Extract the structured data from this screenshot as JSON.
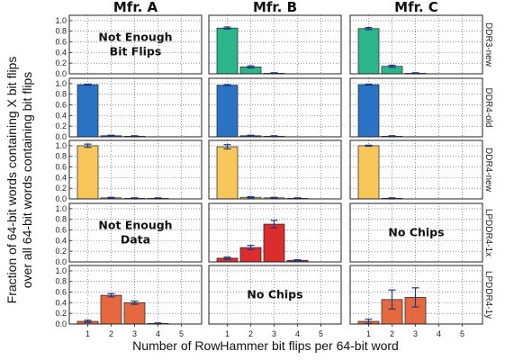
{
  "chart_data": {
    "type": "bar",
    "layout": "faceted grid",
    "columns": [
      "Mfr. A",
      "Mfr. B",
      "Mfr. C"
    ],
    "rows": [
      "DDR3-new",
      "DDR4-old",
      "DDR4-new",
      "LPDDR4-1x",
      "LPDDR4-1y"
    ],
    "row_colors": [
      "#2bb58a",
      "#2a72c4",
      "#f7c75a",
      "#dc2d2d",
      "#e5683f"
    ],
    "xlabel": "Number of RowHammer bit flips per 64-bit word",
    "ylabel_line1": "Fraction of 64-bit words containing X bit flips",
    "ylabel_line2": "over all 64-bit words containing bit flips",
    "categories": [
      "1",
      "2",
      "3",
      "4",
      "5"
    ],
    "yticks": [
      "0.0",
      "0.2",
      "0.4",
      "0.6",
      "0.8",
      "1.0"
    ],
    "ylim": [
      0,
      1.1
    ],
    "grid": true,
    "panels": [
      {
        "row": 0,
        "col": 0,
        "note": "Not Enough\nBit Flips",
        "values": null
      },
      {
        "row": 0,
        "col": 1,
        "values": [
          0.86,
          0.13,
          0.01,
          0,
          0
        ],
        "errors": [
          0.02,
          0.02,
          0.01,
          0,
          0
        ]
      },
      {
        "row": 0,
        "col": 2,
        "values": [
          0.85,
          0.14,
          0.01,
          0,
          0
        ],
        "errors": [
          0.02,
          0.02,
          0.01,
          0,
          0
        ]
      },
      {
        "row": 1,
        "col": 0,
        "values": [
          0.98,
          0.02,
          0.01,
          0,
          0
        ],
        "errors": [
          0.01,
          0.01,
          0.01,
          0,
          0
        ]
      },
      {
        "row": 1,
        "col": 1,
        "values": [
          0.97,
          0.02,
          0.01,
          0,
          0
        ],
        "errors": [
          0.01,
          0.01,
          0.01,
          0,
          0
        ]
      },
      {
        "row": 1,
        "col": 2,
        "values": [
          0.98,
          0.01,
          0,
          0,
          0
        ],
        "errors": [
          0.01,
          0.01,
          0,
          0,
          0
        ]
      },
      {
        "row": 2,
        "col": 0,
        "values": [
          1.0,
          0.02,
          0.01,
          0.01,
          0
        ],
        "errors": [
          0.03,
          0.01,
          0.01,
          0.01,
          0
        ]
      },
      {
        "row": 2,
        "col": 1,
        "values": [
          0.98,
          0.03,
          0.02,
          0.01,
          0
        ],
        "errors": [
          0.04,
          0.01,
          0.01,
          0.01,
          0
        ]
      },
      {
        "row": 2,
        "col": 2,
        "values": [
          1.0,
          0.01,
          0,
          0,
          0
        ],
        "errors": [
          0.01,
          0.01,
          0,
          0,
          0
        ]
      },
      {
        "row": 3,
        "col": 0,
        "note": "Not Enough\nData",
        "values": null
      },
      {
        "row": 3,
        "col": 1,
        "values": [
          0.07,
          0.27,
          0.71,
          0.03,
          0
        ],
        "errors": [
          0.02,
          0.04,
          0.07,
          0.01,
          0
        ]
      },
      {
        "row": 3,
        "col": 2,
        "note": "No Chips",
        "values": null
      },
      {
        "row": 4,
        "col": 0,
        "values": [
          0.05,
          0.54,
          0.4,
          0.01,
          0
        ],
        "errors": [
          0.02,
          0.03,
          0.03,
          0.01,
          0
        ]
      },
      {
        "row": 4,
        "col": 1,
        "note": "No Chips",
        "values": null
      },
      {
        "row": 4,
        "col": 2,
        "values": [
          0.05,
          0.46,
          0.5,
          0,
          0
        ],
        "errors": [
          0.04,
          0.18,
          0.18,
          0,
          0
        ]
      }
    ]
  }
}
